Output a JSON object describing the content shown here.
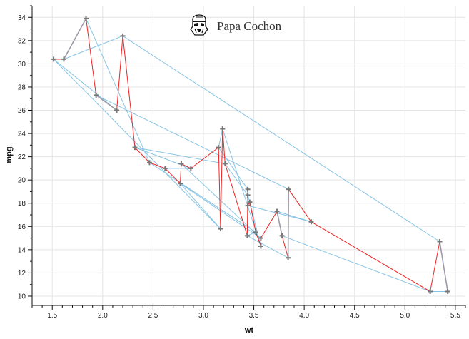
{
  "chart_data": {
    "type": "line",
    "title": "Papa Cochon",
    "title_icon": "stormtrooper-helmet-icon",
    "xlabel": "wt",
    "ylabel": "mpg",
    "xlim": [
      1.3,
      5.6
    ],
    "ylim": [
      9.2,
      35.0
    ],
    "xticks": [
      "1.5",
      "2.0",
      "2.5",
      "3.0",
      "3.5",
      "4.0",
      "4.5",
      "5.0",
      "5.5"
    ],
    "yticks": [
      "10",
      "12",
      "14",
      "16",
      "18",
      "20",
      "22",
      "24",
      "26",
      "28",
      "30",
      "32",
      "34"
    ],
    "grid": true,
    "colors": {
      "primary_line": "#ee2222",
      "secondary_line": "#87c4e4",
      "overlap_line": "#a09aa8",
      "marker": "#777777",
      "grid": "#e4e4e4",
      "axis": "#111111"
    },
    "series": [
      {
        "role": "sorted-by-x-line",
        "color": "#ee2222",
        "points": [
          [
            1.513,
            30.4
          ],
          [
            1.615,
            30.4
          ],
          [
            1.835,
            33.9
          ],
          [
            1.935,
            27.3
          ],
          [
            2.14,
            26.0
          ],
          [
            2.2,
            32.4
          ],
          [
            2.32,
            22.8
          ],
          [
            2.465,
            21.5
          ],
          [
            2.62,
            21.0
          ],
          [
            2.77,
            19.7
          ],
          [
            2.78,
            21.4
          ],
          [
            2.875,
            21.0
          ],
          [
            3.15,
            22.8
          ],
          [
            3.17,
            15.8
          ],
          [
            3.19,
            24.4
          ],
          [
            3.215,
            21.4
          ],
          [
            3.435,
            15.2
          ],
          [
            3.44,
            18.7
          ],
          [
            3.44,
            19.2
          ],
          [
            3.44,
            17.8
          ],
          [
            3.46,
            18.1
          ],
          [
            3.52,
            15.5
          ],
          [
            3.57,
            14.3
          ],
          [
            3.57,
            15.0
          ],
          [
            3.73,
            17.3
          ],
          [
            3.78,
            15.2
          ],
          [
            3.84,
            13.3
          ],
          [
            3.845,
            19.2
          ],
          [
            4.07,
            16.4
          ],
          [
            5.25,
            10.4
          ],
          [
            5.345,
            14.7
          ],
          [
            5.424,
            10.4
          ]
        ]
      },
      {
        "role": "original-order-line",
        "color": "#87c4e4",
        "points": [
          [
            2.62,
            21.0
          ],
          [
            2.875,
            21.0
          ],
          [
            2.32,
            22.8
          ],
          [
            3.215,
            21.4
          ],
          [
            3.44,
            18.7
          ],
          [
            3.46,
            18.1
          ],
          [
            3.57,
            14.3
          ],
          [
            3.19,
            24.4
          ],
          [
            3.15,
            22.8
          ],
          [
            3.44,
            19.2
          ],
          [
            3.44,
            17.8
          ],
          [
            4.07,
            16.4
          ],
          [
            3.73,
            17.3
          ],
          [
            3.78,
            15.2
          ],
          [
            5.25,
            10.4
          ],
          [
            5.424,
            10.4
          ],
          [
            5.345,
            14.7
          ],
          [
            2.2,
            32.4
          ],
          [
            1.615,
            30.4
          ],
          [
            1.835,
            33.9
          ],
          [
            2.465,
            21.5
          ],
          [
            3.52,
            15.5
          ],
          [
            3.435,
            15.2
          ],
          [
            3.84,
            13.3
          ],
          [
            3.845,
            19.2
          ],
          [
            1.935,
            27.3
          ],
          [
            2.14,
            26.0
          ],
          [
            1.513,
            30.4
          ],
          [
            3.17,
            15.8
          ],
          [
            2.77,
            19.7
          ],
          [
            3.57,
            15.0
          ],
          [
            2.78,
            21.4
          ]
        ]
      }
    ]
  }
}
